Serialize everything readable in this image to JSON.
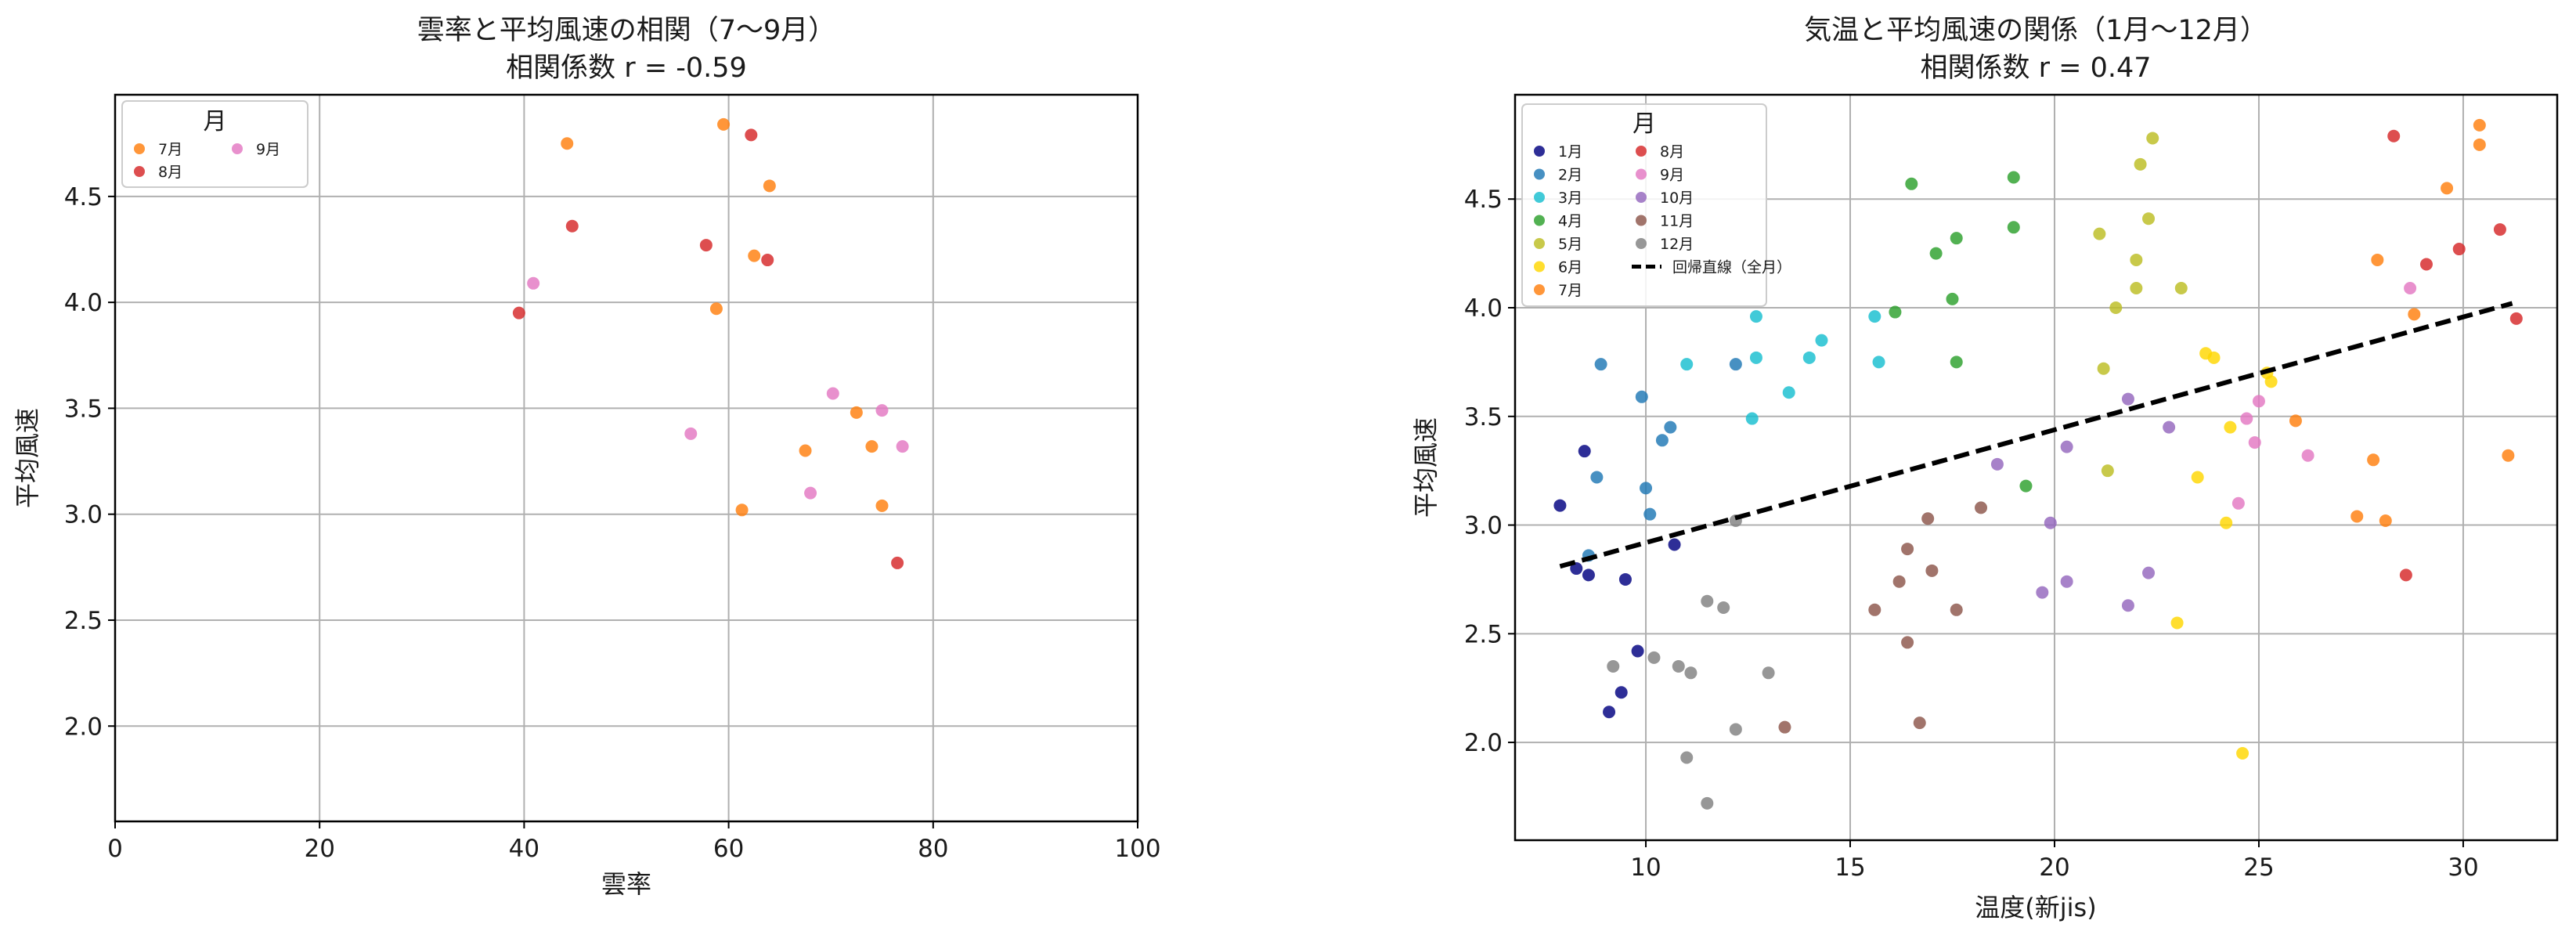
{
  "chart_data": [
    {
      "type": "scatter",
      "title": "雲率と平均風速の相関（7〜9月）",
      "subtitle": "相関係数 r = -0.59",
      "xlabel": "雲率",
      "ylabel": "平均風速",
      "xlim": [
        0,
        100
      ],
      "ylim": [
        1.55,
        4.98
      ],
      "xticks": [
        0,
        20,
        40,
        60,
        80,
        100
      ],
      "yticks": [
        2.0,
        2.5,
        3.0,
        3.5,
        4.0,
        4.5
      ],
      "grid": true,
      "legend": {
        "title": "月",
        "position": "top-left",
        "columns": 2
      },
      "series": [
        {
          "name": "7月",
          "color": "#ff7f0e",
          "points": [
            [
              44.2,
              4.75
            ],
            [
              59.5,
              4.84
            ],
            [
              64.0,
              4.55
            ],
            [
              62.5,
              4.22
            ],
            [
              58.8,
              3.97
            ],
            [
              72.5,
              3.48
            ],
            [
              67.5,
              3.3
            ],
            [
              74.0,
              3.32
            ],
            [
              75.0,
              3.04
            ],
            [
              61.3,
              3.02
            ]
          ]
        },
        {
          "name": "8月",
          "color": "#d62728",
          "points": [
            [
              62.2,
              4.79
            ],
            [
              44.7,
              4.36
            ],
            [
              57.8,
              4.27
            ],
            [
              63.8,
              4.2
            ],
            [
              39.5,
              3.95
            ],
            [
              76.5,
              2.77
            ]
          ]
        },
        {
          "name": "9月",
          "color": "#e377c2",
          "points": [
            [
              40.9,
              4.09
            ],
            [
              70.2,
              3.57
            ],
            [
              75.0,
              3.49
            ],
            [
              56.3,
              3.38
            ],
            [
              77.0,
              3.32
            ],
            [
              68.0,
              3.1
            ]
          ]
        }
      ]
    },
    {
      "type": "scatter",
      "title": "気温と平均風速の関係（1月〜12月）",
      "subtitle": "相関係数 r = 0.47",
      "xlabel": "温度(新jis)",
      "ylabel": "平均風速",
      "xlim": [
        6.8,
        32.3
      ],
      "ylim": [
        1.55,
        4.98
      ],
      "xticks": [
        10,
        15,
        20,
        25,
        30
      ],
      "yticks": [
        2.0,
        2.5,
        3.0,
        3.5,
        4.0,
        4.5
      ],
      "grid": true,
      "legend": {
        "title": "月",
        "position": "top-left",
        "columns": 2
      },
      "regression": {
        "name": "回帰直線（全月）",
        "color": "#000000",
        "x": [
          7.9,
          31.2
        ],
        "y": [
          2.81,
          4.02
        ]
      },
      "series": [
        {
          "name": "1月",
          "color": "#000080",
          "points": [
            [
              7.9,
              3.09
            ],
            [
              8.5,
              3.34
            ],
            [
              8.3,
              2.8
            ],
            [
              8.6,
              2.77
            ],
            [
              9.5,
              2.75
            ],
            [
              10.7,
              2.91
            ],
            [
              9.8,
              2.42
            ],
            [
              9.4,
              2.23
            ],
            [
              9.1,
              2.14
            ]
          ]
        },
        {
          "name": "2月",
          "color": "#1f77b4",
          "points": [
            [
              8.9,
              3.74
            ],
            [
              9.9,
              3.59
            ],
            [
              10.6,
              3.45
            ],
            [
              10.4,
              3.39
            ],
            [
              8.8,
              3.22
            ],
            [
              10.0,
              3.17
            ],
            [
              10.1,
              3.05
            ],
            [
              8.6,
              2.86
            ],
            [
              12.2,
              3.74
            ]
          ]
        },
        {
          "name": "3月",
          "color": "#17becf",
          "points": [
            [
              11.0,
              3.74
            ],
            [
              12.7,
              3.96
            ],
            [
              12.7,
              3.77
            ],
            [
              12.6,
              3.49
            ],
            [
              13.5,
              3.61
            ],
            [
              14.0,
              3.77
            ],
            [
              14.3,
              3.85
            ],
            [
              15.6,
              3.96
            ],
            [
              15.7,
              3.75
            ]
          ]
        },
        {
          "name": "4月",
          "color": "#2ca02c",
          "points": [
            [
              16.5,
              4.57
            ],
            [
              16.1,
              3.98
            ],
            [
              17.1,
              4.25
            ],
            [
              17.6,
              4.32
            ],
            [
              17.5,
              4.04
            ],
            [
              17.6,
              3.75
            ],
            [
              19.0,
              4.6
            ],
            [
              19.0,
              4.37
            ],
            [
              19.3,
              3.18
            ]
          ]
        },
        {
          "name": "5月",
          "color": "#bcbd22",
          "points": [
            [
              22.4,
              4.78
            ],
            [
              22.1,
              4.66
            ],
            [
              22.3,
              4.41
            ],
            [
              21.1,
              4.34
            ],
            [
              22.0,
              4.22
            ],
            [
              22.0,
              4.09
            ],
            [
              23.1,
              4.09
            ],
            [
              21.5,
              4.0
            ],
            [
              21.2,
              3.72
            ],
            [
              21.3,
              3.25
            ]
          ]
        },
        {
          "name": "6月",
          "color": "#ffd700",
          "points": [
            [
              23.7,
              3.79
            ],
            [
              23.9,
              3.77
            ],
            [
              25.2,
              3.7
            ],
            [
              25.3,
              3.66
            ],
            [
              24.3,
              3.45
            ],
            [
              23.5,
              3.22
            ],
            [
              24.2,
              3.01
            ],
            [
              23.0,
              2.55
            ],
            [
              24.6,
              1.95
            ]
          ]
        },
        {
          "name": "7月",
          "color": "#ff7f0e",
          "points": [
            [
              30.4,
              4.84
            ],
            [
              30.4,
              4.75
            ],
            [
              29.6,
              4.55
            ],
            [
              27.9,
              4.22
            ],
            [
              28.8,
              3.97
            ],
            [
              25.9,
              3.48
            ],
            [
              27.8,
              3.3
            ],
            [
              31.1,
              3.32
            ],
            [
              27.4,
              3.04
            ],
            [
              28.1,
              3.02
            ]
          ]
        },
        {
          "name": "8月",
          "color": "#d62728",
          "points": [
            [
              28.3,
              4.79
            ],
            [
              30.9,
              4.36
            ],
            [
              29.9,
              4.27
            ],
            [
              29.1,
              4.2
            ],
            [
              31.3,
              3.95
            ],
            [
              28.6,
              2.77
            ]
          ]
        },
        {
          "name": "9月",
          "color": "#e377c2",
          "points": [
            [
              28.7,
              4.09
            ],
            [
              25.0,
              3.57
            ],
            [
              24.7,
              3.49
            ],
            [
              24.9,
              3.38
            ],
            [
              26.2,
              3.32
            ],
            [
              24.5,
              3.1
            ]
          ]
        },
        {
          "name": "10月",
          "color": "#9467bd",
          "points": [
            [
              21.8,
              3.58
            ],
            [
              20.3,
              3.36
            ],
            [
              22.8,
              3.45
            ],
            [
              18.6,
              3.28
            ],
            [
              19.9,
              3.01
            ],
            [
              20.3,
              2.74
            ],
            [
              19.7,
              2.69
            ],
            [
              21.8,
              2.63
            ],
            [
              22.3,
              2.78
            ]
          ]
        },
        {
          "name": "11月",
          "color": "#8c564b",
          "points": [
            [
              16.9,
              3.03
            ],
            [
              18.2,
              3.08
            ],
            [
              16.4,
              2.89
            ],
            [
              16.2,
              2.74
            ],
            [
              17.0,
              2.79
            ],
            [
              15.6,
              2.61
            ],
            [
              17.6,
              2.61
            ],
            [
              16.4,
              2.46
            ],
            [
              13.4,
              2.07
            ],
            [
              16.7,
              2.09
            ]
          ]
        },
        {
          "name": "12月",
          "color": "#808080",
          "points": [
            [
              12.2,
              3.02
            ],
            [
              11.5,
              2.65
            ],
            [
              11.9,
              2.62
            ],
            [
              10.2,
              2.39
            ],
            [
              10.8,
              2.35
            ],
            [
              11.1,
              2.32
            ],
            [
              9.2,
              2.35
            ],
            [
              13.0,
              2.32
            ],
            [
              12.2,
              2.06
            ],
            [
              11.0,
              1.93
            ],
            [
              11.5,
              1.72
            ]
          ]
        }
      ]
    }
  ]
}
